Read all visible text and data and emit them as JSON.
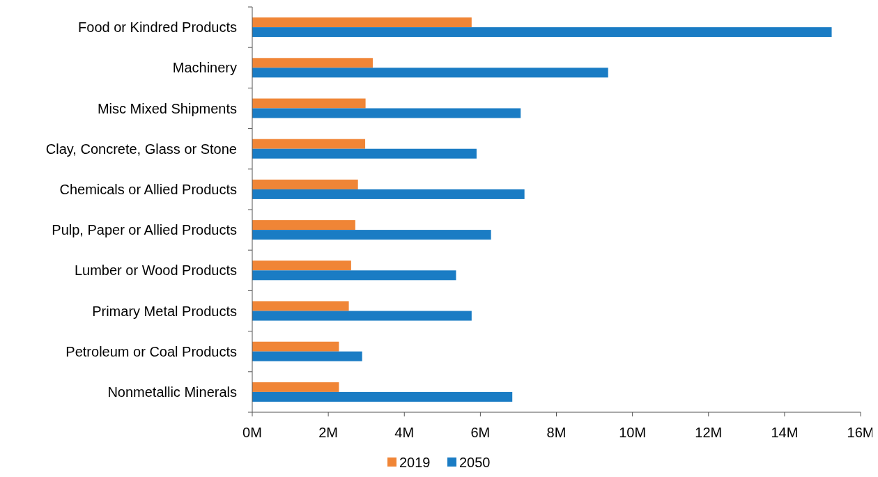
{
  "chart_data": {
    "type": "bar",
    "orientation": "horizontal",
    "categories": [
      "Food or Kindred Products",
      "Machinery",
      "Misc Mixed Shipments",
      "Clay, Concrete, Glass or Stone",
      "Chemicals or Allied Products",
      "Pulp, Paper or Allied Products",
      "Lumber or Wood Products",
      "Primary Metal Products",
      "Petroleum or Coal Products",
      "Nonmetallic Minerals"
    ],
    "series": [
      {
        "name": "2019",
        "color": "#f08536",
        "values": [
          5.77,
          3.17,
          2.98,
          2.97,
          2.78,
          2.71,
          2.6,
          2.54,
          2.28,
          2.28
        ]
      },
      {
        "name": "2050",
        "color": "#1a7cc4",
        "values": [
          15.24,
          9.36,
          7.06,
          5.9,
          7.16,
          6.28,
          5.36,
          5.77,
          2.89,
          6.84
        ]
      }
    ],
    "xlim": [
      0,
      16
    ],
    "xticks": [
      {
        "value": 0,
        "label": "0M"
      },
      {
        "value": 2,
        "label": "2M"
      },
      {
        "value": 4,
        "label": "4M"
      },
      {
        "value": 6,
        "label": "6M"
      },
      {
        "value": 8,
        "label": "8M"
      },
      {
        "value": 10,
        "label": "10M"
      },
      {
        "value": 12,
        "label": "12M"
      },
      {
        "value": 14,
        "label": "14M"
      },
      {
        "value": 16,
        "label": "16M"
      }
    ],
    "grid": false,
    "legend": "bottom"
  }
}
